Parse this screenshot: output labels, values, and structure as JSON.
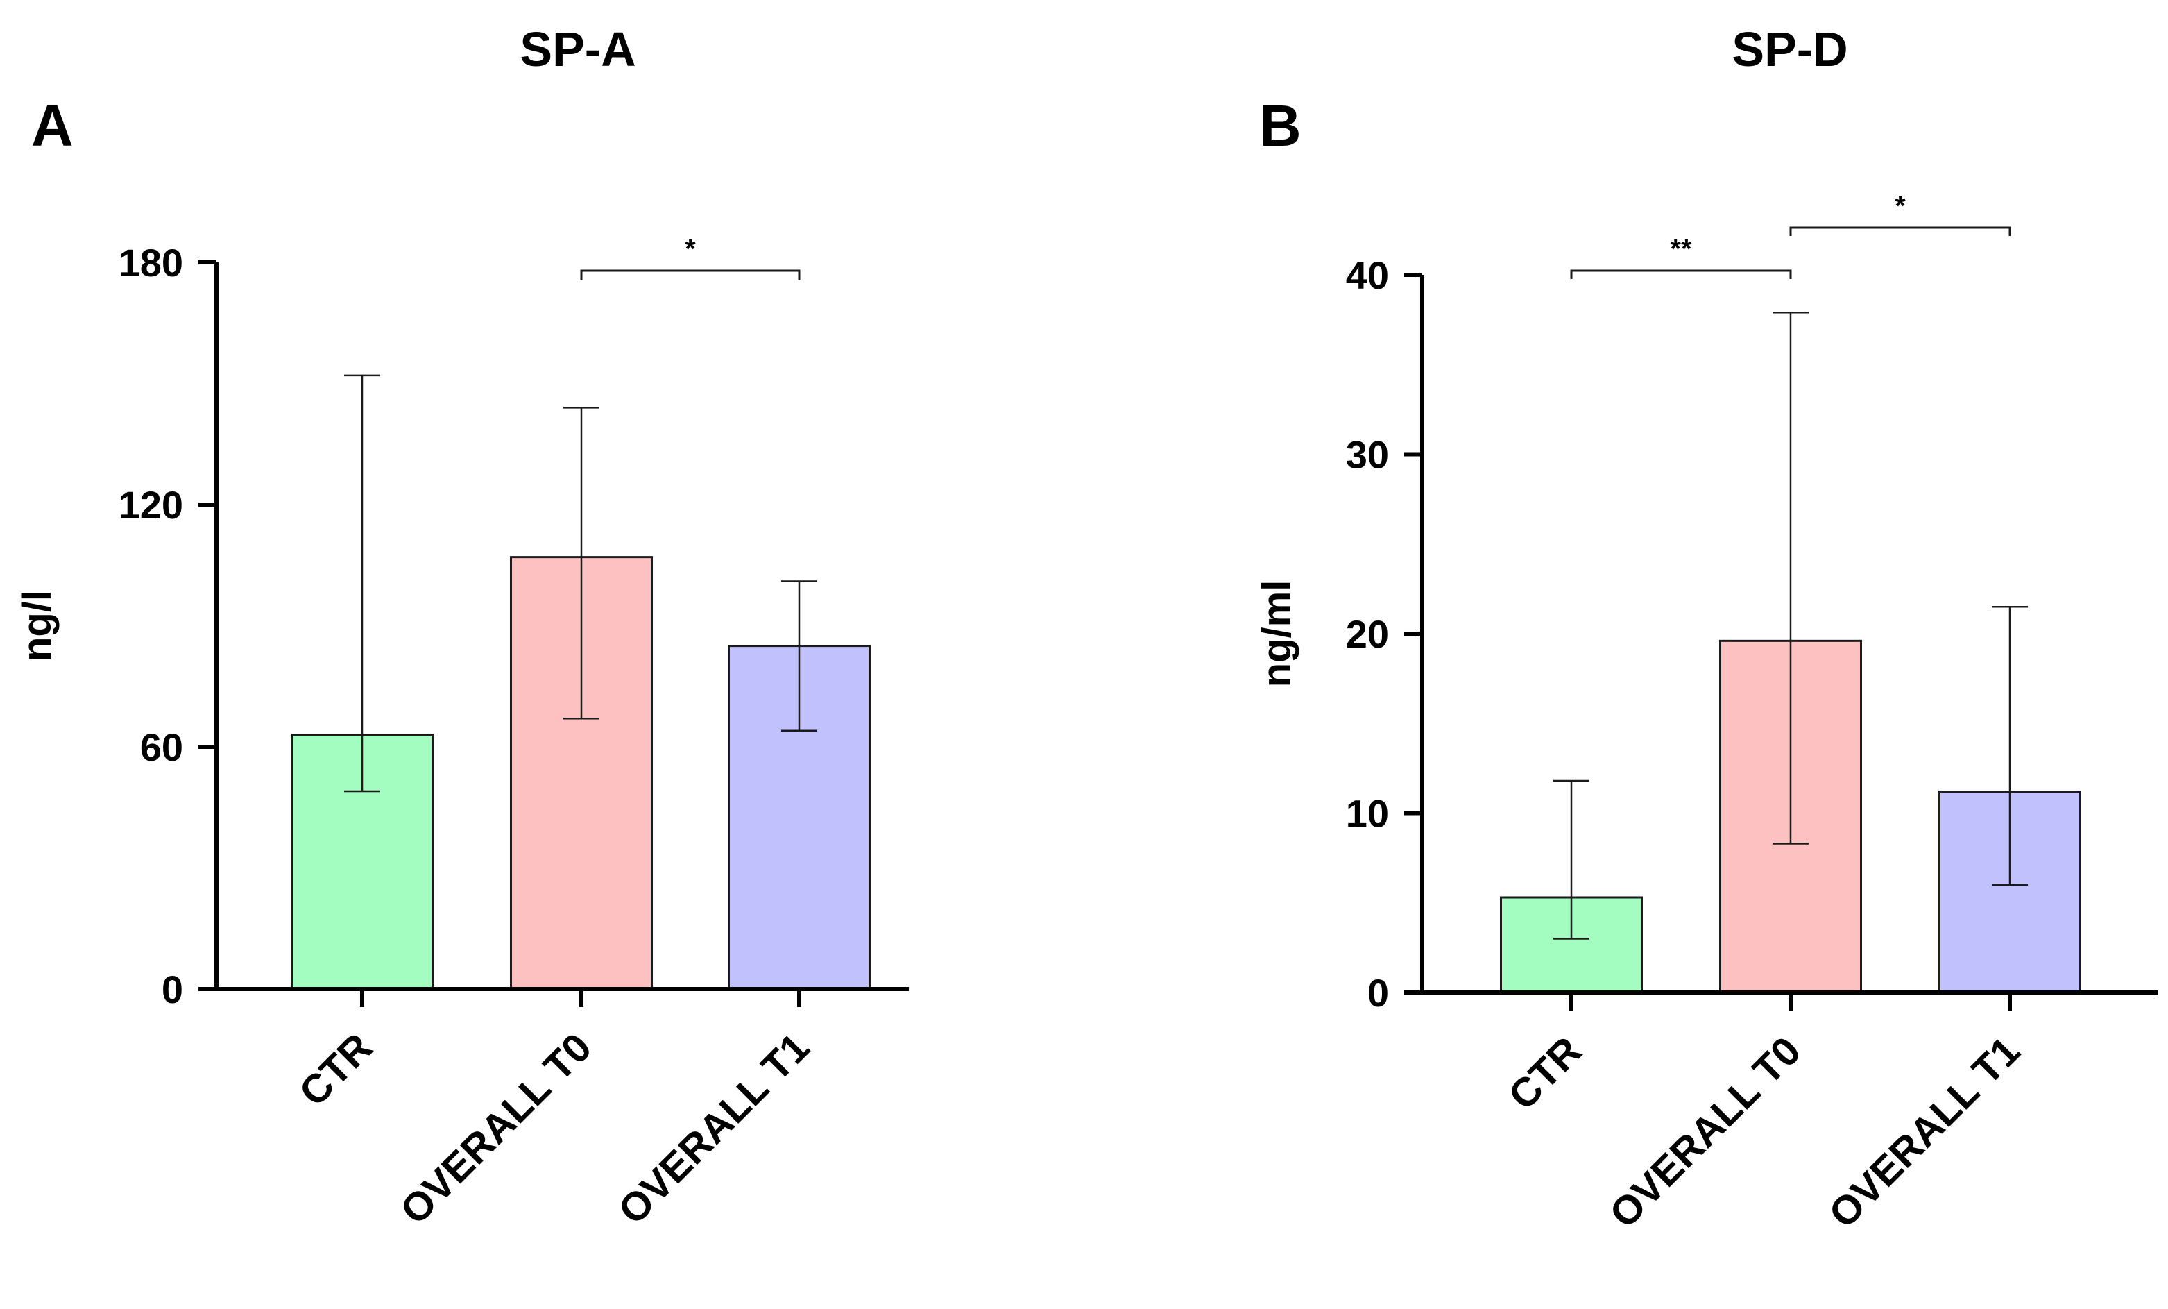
{
  "chart_data": [
    {
      "type": "bar",
      "panel_label": "A",
      "title": "SP-A",
      "xlabel": "",
      "ylabel": "ng/l",
      "ylim": [
        0,
        180
      ],
      "yticks": [
        0,
        60,
        120,
        180
      ],
      "categories": [
        "CTR",
        "OVERALL T0",
        "OVERALL T1"
      ],
      "values": [
        63,
        107,
        85
      ],
      "error_low": [
        49,
        67,
        64
      ],
      "error_high": [
        152,
        144,
        101
      ],
      "colors": [
        "#a3fdc0",
        "#fec1c1",
        "#c1c1fd"
      ],
      "significance": [
        {
          "from": 1,
          "to": 2,
          "label": "*"
        }
      ],
      "grid": false,
      "legend": "none"
    },
    {
      "type": "bar",
      "panel_label": "B",
      "title": "SP-D",
      "xlabel": "",
      "ylabel": "ng/ml",
      "ylim": [
        0,
        40
      ],
      "yticks": [
        0,
        10,
        20,
        30,
        40
      ],
      "categories": [
        "CTR",
        "OVERALL T0",
        "OVERALL T1"
      ],
      "values": [
        5.3,
        19.6,
        11.2
      ],
      "error_low": [
        3.0,
        8.3,
        6.0
      ],
      "error_high": [
        11.8,
        37.9,
        21.5
      ],
      "colors": [
        "#a3fdc0",
        "#fec1c1",
        "#c1c1fd"
      ],
      "significance": [
        {
          "from": 0,
          "to": 1,
          "label": "**"
        },
        {
          "from": 1,
          "to": 2,
          "label": "*"
        }
      ],
      "grid": false,
      "legend": "none"
    }
  ]
}
